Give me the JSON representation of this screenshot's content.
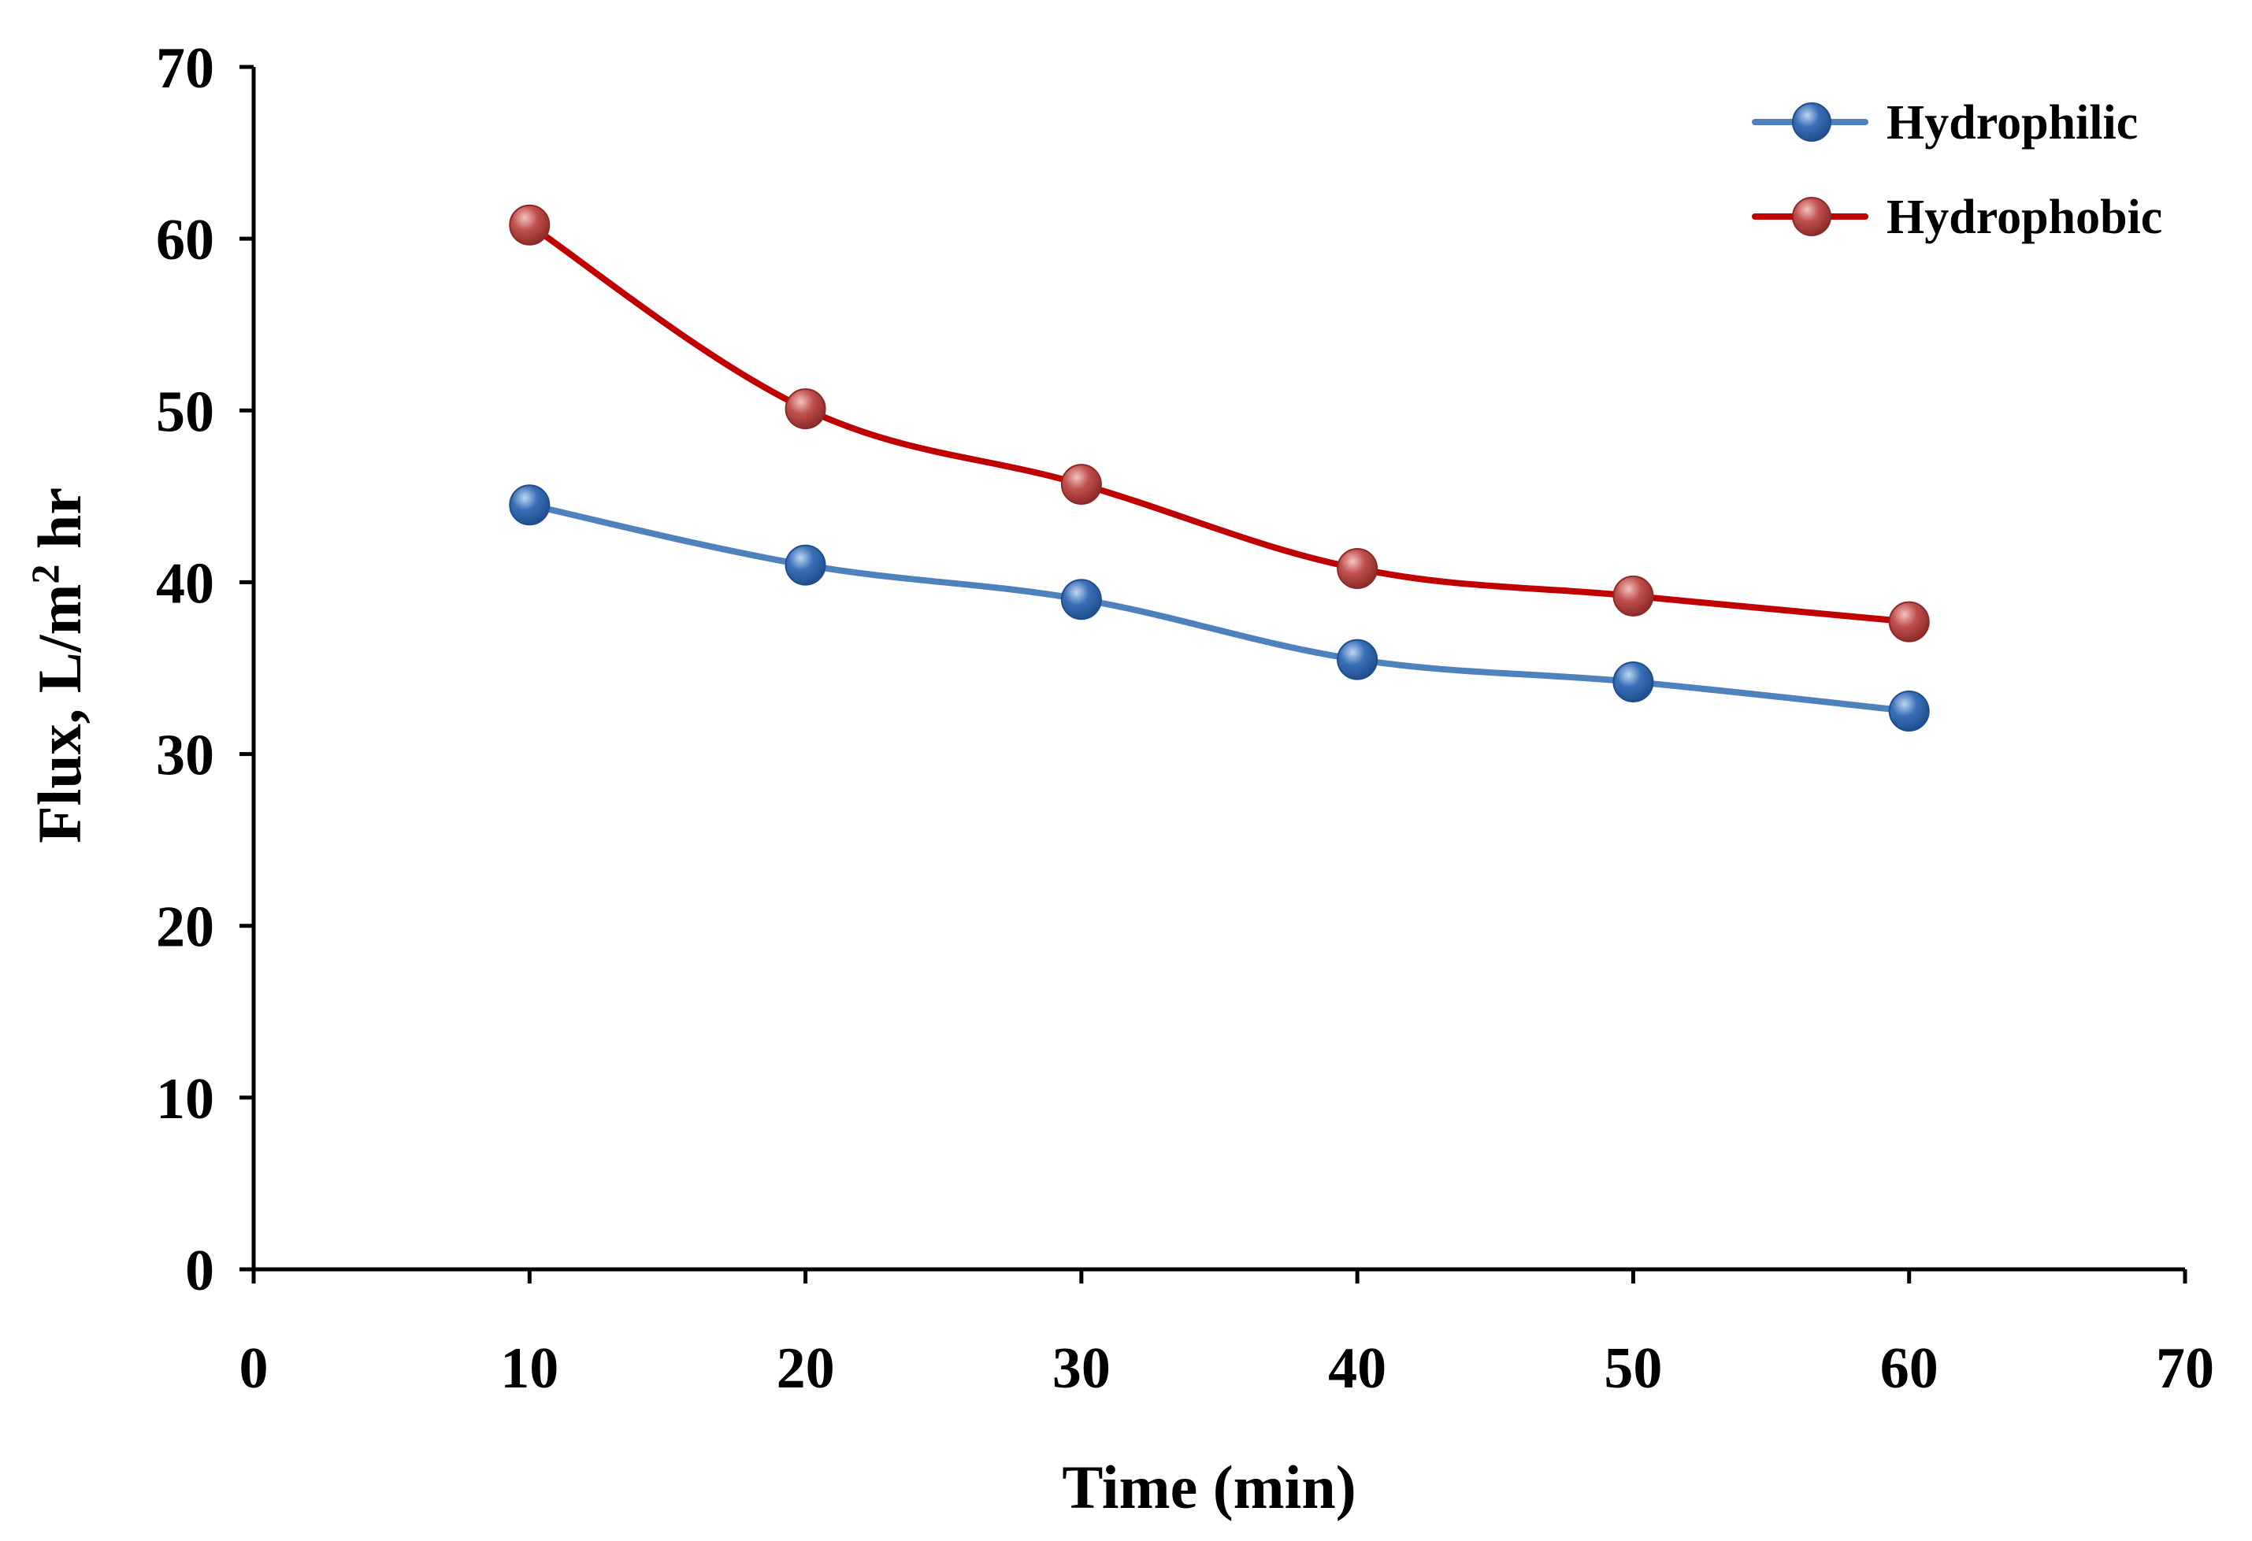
{
  "chart_data": {
    "type": "line",
    "title": "",
    "xlabel": "Time (min)",
    "ylabel_main": "Flux, L/m",
    "ylabel_sup": "2",
    "ylabel_end": " hr",
    "xlim": [
      0,
      70
    ],
    "ylim": [
      0,
      70
    ],
    "x_ticks": [
      0,
      10,
      20,
      30,
      40,
      50,
      60,
      70
    ],
    "y_ticks": [
      0,
      10,
      20,
      30,
      40,
      50,
      60,
      70
    ],
    "x_tick_labels": [
      "0",
      "10",
      "20",
      "30",
      "40",
      "50",
      "60",
      "70"
    ],
    "y_tick_labels": [
      "0",
      "10",
      "20",
      "30",
      "40",
      "50",
      "60",
      "70"
    ],
    "grid": false,
    "legend_position": "top-right",
    "x": [
      10,
      20,
      30,
      40,
      50,
      60
    ],
    "series": [
      {
        "name": "Hydrophilic",
        "values": [
          44.5,
          41.0,
          39.0,
          35.5,
          34.2,
          32.5
        ],
        "line_color": "#4F81BD",
        "marker_color": "#3A6FB8",
        "marker_dark": "#1F4E8C",
        "marker_light": "#BFD6F2"
      },
      {
        "name": "Hydrophobic",
        "values": [
          60.8,
          50.1,
          45.7,
          40.8,
          39.2,
          37.7
        ],
        "line_color": "#C00000",
        "marker_color": "#C0504D",
        "marker_dark": "#8C2A28",
        "marker_light": "#F2C4C2"
      }
    ]
  }
}
